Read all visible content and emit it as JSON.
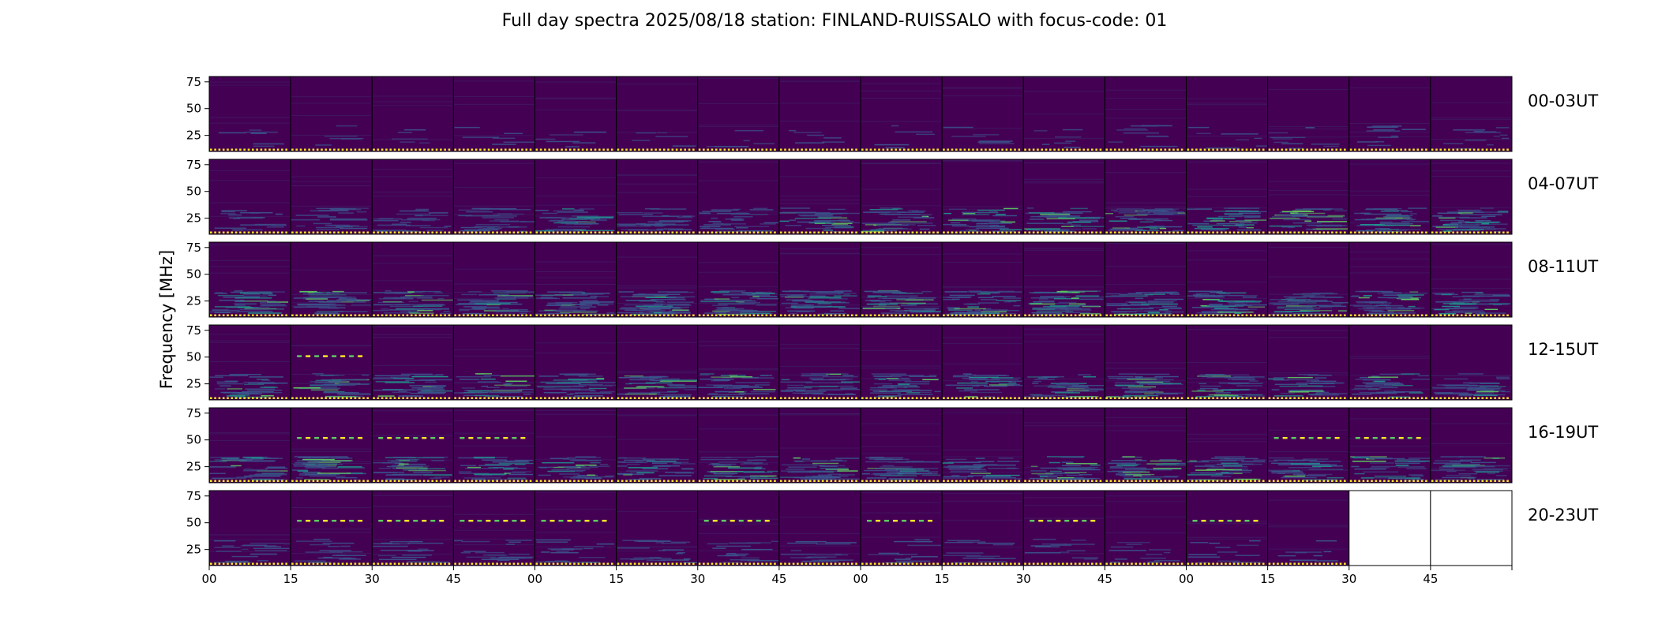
{
  "chart_data": {
    "type": "heatmap",
    "title": "Full day spectra 2025/08/18 station: FINLAND-RUISSALO with focus-code: 01",
    "ylabel": "Frequency [MHz]",
    "xlabel": "",
    "colormap": "viridis",
    "background_color": "#440154",
    "ylim": [
      10,
      80
    ],
    "y_ticks": [
      "75",
      "50",
      "25"
    ],
    "y_tick_values": [
      75,
      50,
      25
    ],
    "x_tick_labels": [
      "00",
      "15",
      "30",
      "45",
      "00",
      "15",
      "30",
      "45",
      "00",
      "15",
      "30",
      "45",
      "00",
      "15",
      "30",
      "45",
      "",
      ""
    ],
    "panels_per_row": 16,
    "panel_minutes": 15,
    "rows": [
      {
        "label": "00-03UT",
        "filled_panels": 16,
        "activity": [
          0.1,
          0.08,
          0.08,
          0.1,
          0.1,
          0.08,
          0.08,
          0.1,
          0.08,
          0.1,
          0.12,
          0.15,
          0.12,
          0.15,
          0.18,
          0.2
        ],
        "bands": []
      },
      {
        "label": "04-07UT",
        "filled_panels": 16,
        "activity": [
          0.3,
          0.4,
          0.45,
          0.5,
          0.55,
          0.5,
          0.5,
          0.6,
          0.55,
          0.6,
          0.65,
          0.7,
          0.65,
          0.65,
          0.7,
          0.75
        ],
        "bands": []
      },
      {
        "label": "08-11UT",
        "filled_panels": 16,
        "activity": [
          0.7,
          0.75,
          0.75,
          0.75,
          0.75,
          0.8,
          0.8,
          0.85,
          0.8,
          0.8,
          0.75,
          0.8,
          0.8,
          0.75,
          0.75,
          0.7
        ],
        "bands": []
      },
      {
        "label": "12-15UT",
        "filled_panels": 16,
        "activity": [
          0.55,
          0.6,
          0.6,
          0.55,
          0.6,
          0.6,
          0.6,
          0.6,
          0.65,
          0.55,
          0.6,
          0.6,
          0.6,
          0.55,
          0.55,
          0.55
        ],
        "bands": [
          {
            "freq": 51,
            "panels": [
              1
            ]
          }
        ]
      },
      {
        "label": "16-19UT",
        "filled_panels": 16,
        "activity": [
          0.65,
          0.7,
          0.65,
          0.6,
          0.6,
          0.6,
          0.65,
          0.65,
          0.65,
          0.6,
          0.6,
          0.6,
          0.6,
          0.55,
          0.55,
          0.55
        ],
        "bands": [
          {
            "freq": 52,
            "panels": [
              1,
              2,
              3
            ]
          },
          {
            "freq": 52,
            "panels": [
              13,
              14
            ]
          }
        ]
      },
      {
        "label": "20-23UT",
        "filled_panels": 14,
        "activity": [
          0.3,
          0.3,
          0.3,
          0.3,
          0.3,
          0.35,
          0.3,
          0.25,
          0.2,
          0.2,
          0.2,
          0.2,
          0.2,
          0.15,
          0,
          0
        ],
        "bands": [
          {
            "freq": 52,
            "panels": [
              1,
              2,
              3
            ]
          },
          {
            "freq": 52,
            "panels": [
              4
            ]
          },
          {
            "freq": 52,
            "panels": [
              6
            ]
          },
          {
            "freq": 52,
            "panels": [
              8
            ]
          },
          {
            "freq": 52,
            "panels": [
              10
            ]
          },
          {
            "freq": 52,
            "panels": [
              12
            ]
          }
        ]
      }
    ],
    "calibration_stripe_colors": [
      "#fde725",
      "#440154"
    ]
  }
}
